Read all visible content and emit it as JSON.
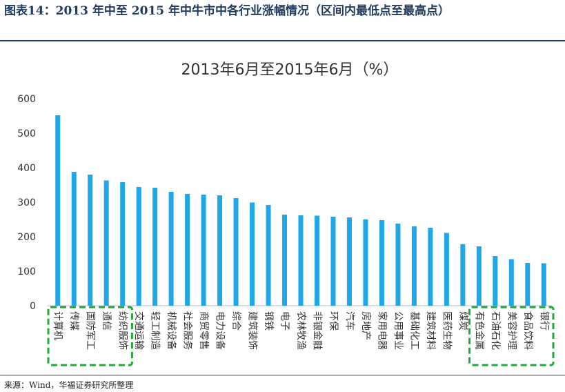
{
  "figure": {
    "title": "图表14：2013 年中至 2015 年中牛市中各行业涨幅情况（区间内最低点至最高点）",
    "source": "来源：Wind，华福证券研究所整理"
  },
  "colors": {
    "bar": "#1fa7e8",
    "highlight": "#22a83a",
    "rule": "#1f3a5f"
  },
  "chart_data": {
    "type": "bar",
    "title": "2013年6月至2015年6月（%）",
    "xlabel": "",
    "ylabel": "",
    "ylim": [
      0,
      600
    ],
    "yticks": [
      0,
      100,
      200,
      300,
      400,
      500,
      600
    ],
    "grid": false,
    "categories": [
      "计算机",
      "传媒",
      "国防军工",
      "通信",
      "纺织服饰",
      "交通运输",
      "轻工制造",
      "机械设备",
      "社会服务",
      "商贸零售",
      "电力设备",
      "综合",
      "建筑装饰",
      "钢铁",
      "电子",
      "农林牧渔",
      "非银金融",
      "环保",
      "汽车",
      "房地产",
      "家用电器",
      "公用事业",
      "基础化工",
      "建筑材料",
      "医药生物",
      "煤炭",
      "有色金属",
      "石油石化",
      "美容护理",
      "食品饮料",
      "银行"
    ],
    "values": [
      552,
      388,
      380,
      363,
      358,
      344,
      342,
      330,
      324,
      322,
      320,
      312,
      299,
      292,
      264,
      262,
      261,
      258,
      256,
      250,
      248,
      238,
      230,
      226,
      211,
      178,
      172,
      144,
      135,
      124,
      123
    ],
    "highlight_groups": [
      [
        0,
        4
      ],
      [
        26,
        30
      ]
    ]
  }
}
